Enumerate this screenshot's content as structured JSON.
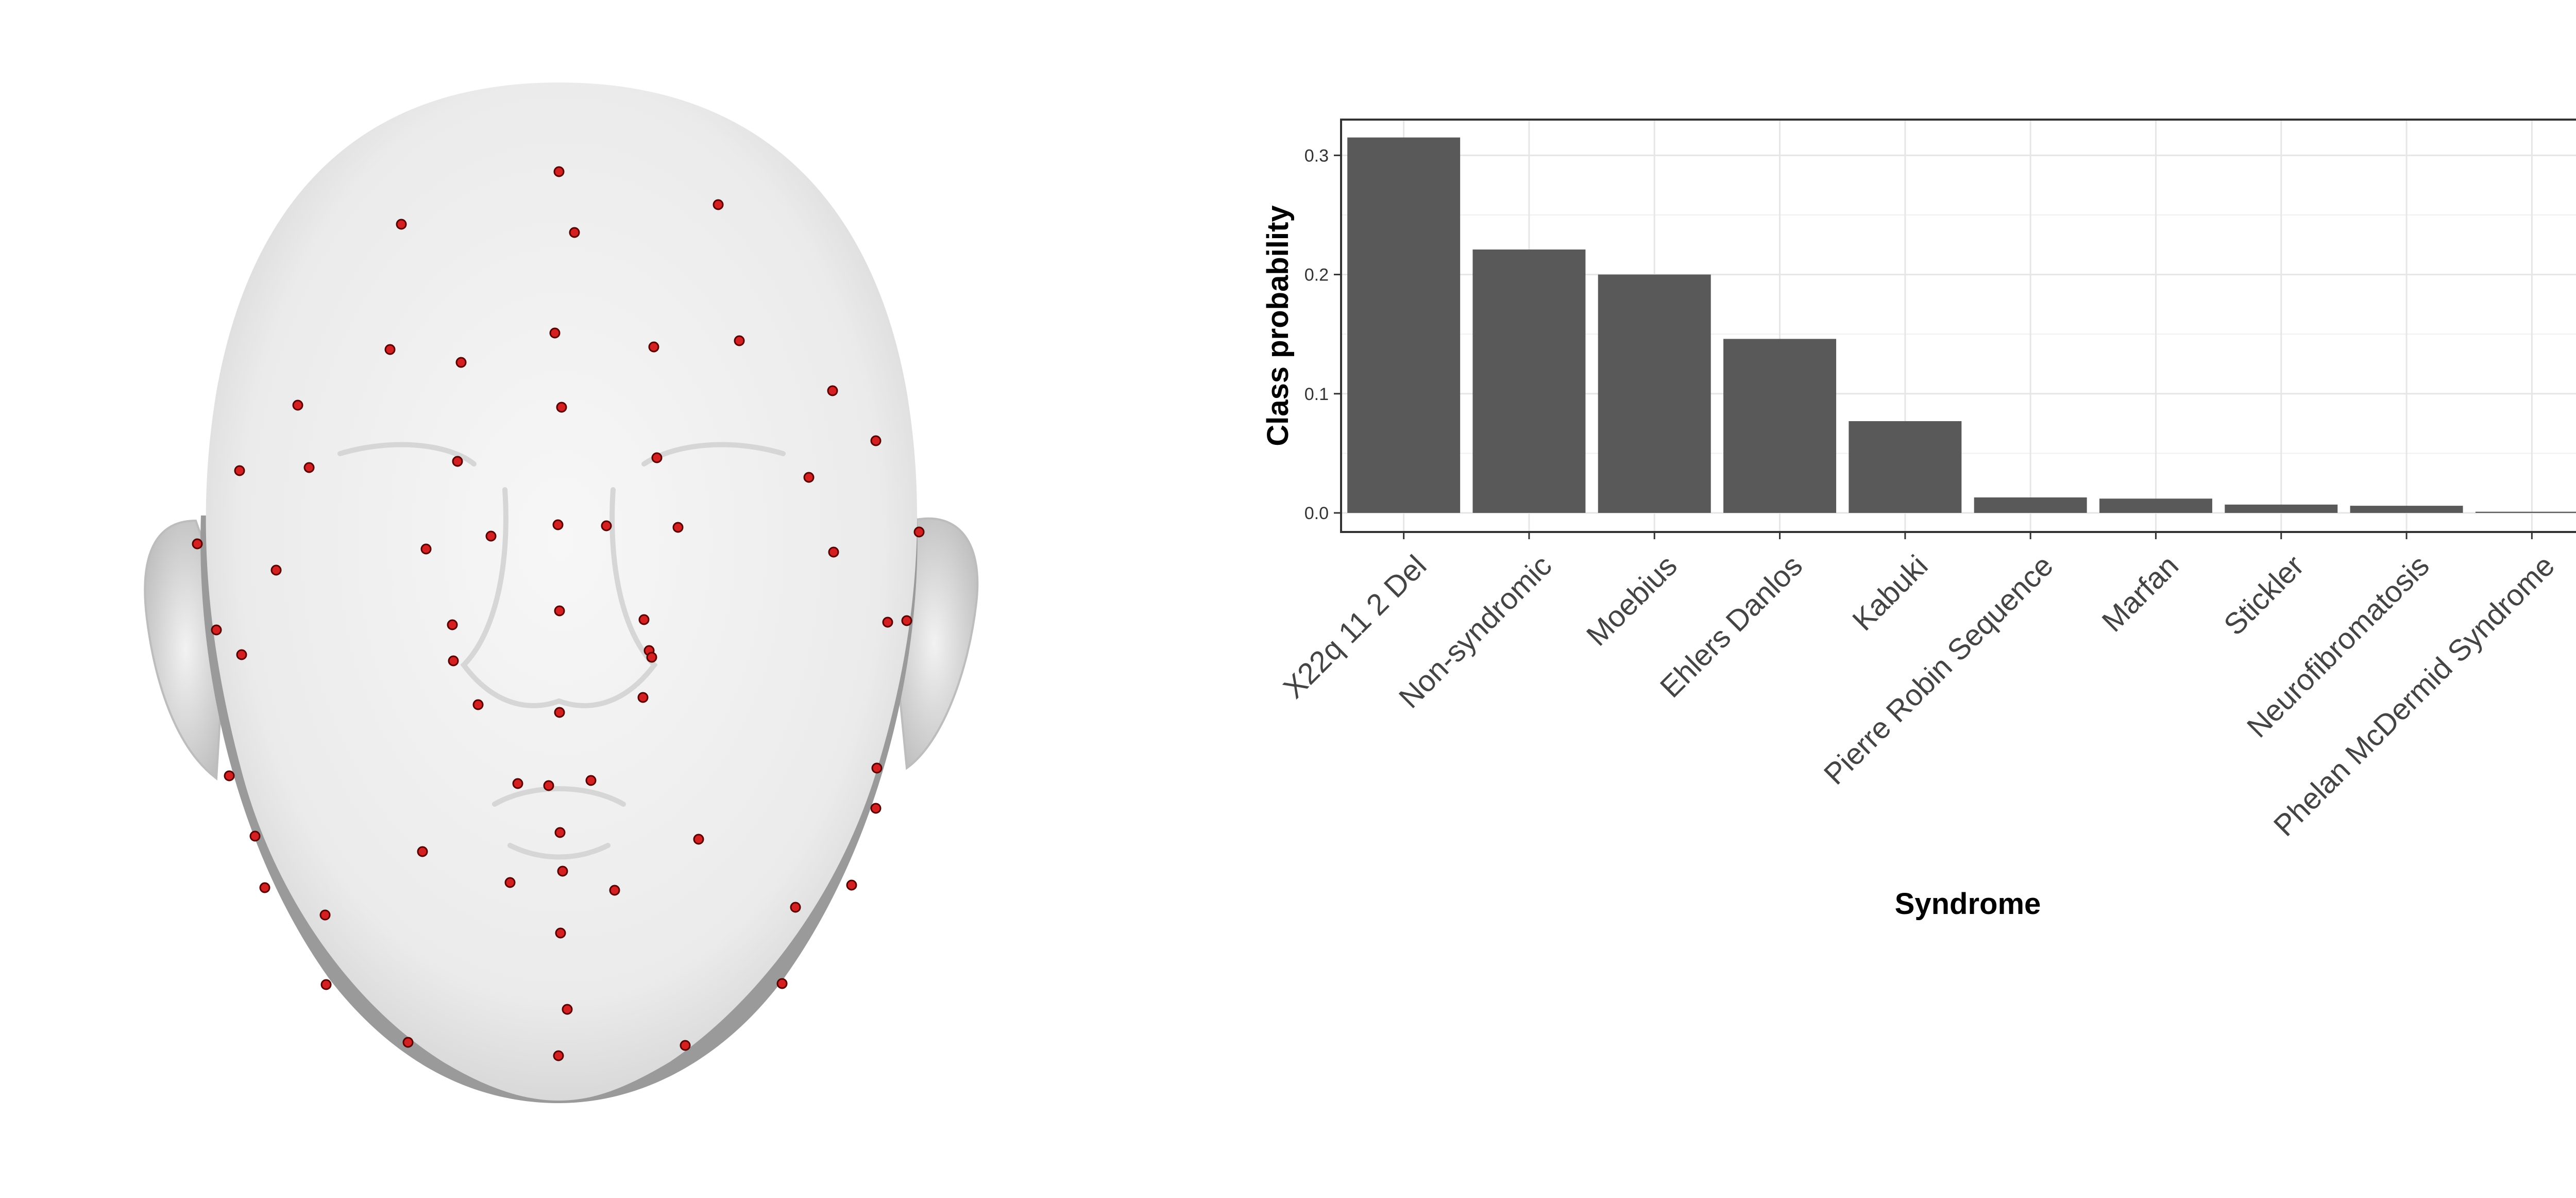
{
  "figure": {
    "left_panel": "3d-face-with-landmarks",
    "landmark_color": "#d42020",
    "face_color": "#ececec"
  },
  "chart_data": {
    "type": "bar",
    "categories": [
      "X22q 11 2 Del",
      "Non-syndromic",
      "Moebius",
      "Ehlers Danlos",
      "Kabuki",
      "Pierre Robin Sequence",
      "Marfan",
      "Stickler",
      "Neurofibromatosis",
      "Phelan McDermid Syndrome"
    ],
    "values": [
      0.315,
      0.221,
      0.2,
      0.146,
      0.077,
      0.013,
      0.012,
      0.007,
      0.006,
      0.001
    ],
    "xlabel": "Syndrome",
    "ylabel": "Class probability",
    "ylim": [
      -0.016,
      0.33
    ],
    "yticks": [
      0.0,
      0.1,
      0.2,
      0.3
    ],
    "ytick_labels": [
      "0.0",
      "0.1",
      "0.2",
      "0.3"
    ],
    "grid": true,
    "bar_color": "#595959",
    "theme": "bw"
  }
}
